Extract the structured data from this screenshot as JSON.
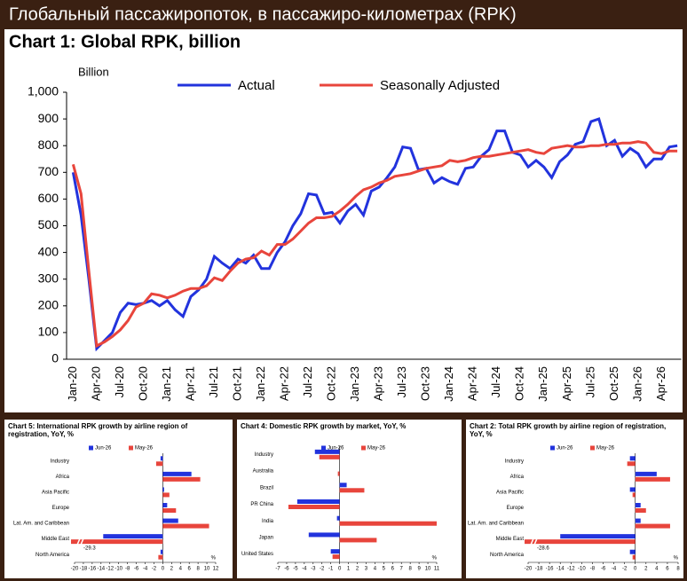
{
  "header": {
    "title": "Глобальный пассажиропоток, в пассажиро-километрах (RPK)"
  },
  "chart_data": [
    {
      "type": "line",
      "title": "Chart 1: Global RPK, billion",
      "y_label": "Billion",
      "categories": [
        "Jan-20",
        null,
        null,
        "Apr-20",
        null,
        null,
        "Jul-20",
        null,
        null,
        "Oct-20",
        null,
        null,
        "Jan-21",
        null,
        null,
        "Apr-21",
        null,
        null,
        "Jul-21",
        null,
        null,
        "Oct-21",
        null,
        null,
        "Jan-22",
        null,
        null,
        "Apr-22",
        null,
        null,
        "Jul-22",
        null,
        null,
        "Oct-22",
        null,
        null,
        "Jan-23",
        null,
        null,
        "Apr-23",
        null,
        null,
        "Jul-23",
        null,
        null,
        "Oct-23",
        null,
        null,
        "Jan-24",
        null,
        null,
        "Apr-24",
        null,
        null,
        "Jul-24",
        null,
        null,
        "Oct-24",
        null,
        null,
        "Jan-25",
        null,
        null,
        "Apr-25",
        null,
        null,
        "Jul-25",
        null,
        null,
        "Oct-25",
        null,
        null,
        "Jan-26",
        null,
        null,
        "Apr-26",
        null,
        null
      ],
      "series": [
        {
          "name": "Actual",
          "color": "#2233dd",
          "values": [
            700,
            540,
            300,
            40,
            70,
            100,
            175,
            210,
            205,
            210,
            220,
            200,
            220,
            185,
            160,
            235,
            260,
            300,
            385,
            360,
            340,
            375,
            360,
            390,
            340,
            340,
            400,
            440,
            500,
            545,
            620,
            615,
            545,
            550,
            510,
            555,
            580,
            540,
            630,
            645,
            680,
            720,
            795,
            790,
            710,
            715,
            660,
            680,
            665,
            655,
            715,
            720,
            760,
            785,
            855,
            855,
            775,
            765,
            720,
            745,
            720,
            680,
            740,
            765,
            805,
            815,
            890,
            900,
            800,
            820,
            760,
            790,
            770,
            720,
            750,
            750,
            795,
            800
          ]
        },
        {
          "name": "Seasonally Adjusted",
          "color": "#e8453c",
          "values": [
            730,
            620,
            330,
            50,
            65,
            85,
            110,
            145,
            195,
            210,
            245,
            240,
            230,
            240,
            255,
            265,
            265,
            275,
            305,
            295,
            330,
            360,
            375,
            380,
            405,
            390,
            430,
            430,
            450,
            480,
            510,
            530,
            530,
            535,
            555,
            580,
            610,
            635,
            645,
            660,
            670,
            685,
            690,
            695,
            705,
            715,
            720,
            725,
            745,
            740,
            745,
            755,
            760,
            760,
            765,
            770,
            775,
            780,
            785,
            775,
            770,
            790,
            795,
            800,
            795,
            795,
            800,
            800,
            805,
            805,
            810,
            810,
            815,
            810,
            775,
            770,
            780,
            780
          ]
        }
      ],
      "ylim": [
        0,
        1000
      ],
      "yticks": [
        0,
        100,
        200,
        300,
        400,
        500,
        600,
        700,
        800,
        900,
        {
          "value": 1000,
          "label": "1,000"
        }
      ],
      "legend": "top",
      "grid": false
    },
    {
      "type": "hbar",
      "title": "Chart 5: International RPK growth by airline region of registration, YoY, %",
      "categories": [
        "Industry",
        "Africa",
        "Asia Pacific",
        "Europe",
        "Lat. Am. and Caribbean",
        "Middle East",
        "North America"
      ],
      "series": [
        {
          "name": "Jun-26",
          "color": "#2233dd",
          "values": [
            -0.5,
            6.5,
            0.3,
            1.0,
            3.5,
            -13.5,
            -0.5
          ]
        },
        {
          "name": "May-26",
          "color": "#e8453c",
          "values": [
            -1.5,
            8.5,
            1.5,
            3.0,
            10.5,
            -29.3,
            -1.0
          ],
          "value_labels": [
            null,
            null,
            null,
            null,
            null,
            "-29.3",
            null
          ]
        }
      ],
      "xlim": [
        -20,
        12
      ],
      "xticks": [
        -20,
        -18,
        -16,
        -14,
        -12,
        -10,
        -8,
        -6,
        -4,
        -2,
        0,
        2,
        4,
        6,
        8,
        10,
        12
      ],
      "x_label": "%"
    },
    {
      "type": "hbar",
      "title": "Chart 4: Domestic RPK growth by market, YoY, %",
      "categories": [
        "Industry",
        "Australia",
        "Brazil",
        "PR China",
        "India",
        "Japan",
        "United States"
      ],
      "series": [
        {
          "name": "Jun-26",
          "color": "#2233dd",
          "values": [
            -2.8,
            0,
            0.8,
            -4.8,
            -0.3,
            -3.5,
            -1.0
          ]
        },
        {
          "name": "May-26",
          "color": "#e8453c",
          "values": [
            -2.3,
            -0.2,
            2.8,
            -5.8,
            11,
            4.2,
            -0.8
          ]
        }
      ],
      "xlim": [
        -7,
        11
      ],
      "xticks": [
        -7,
        -6,
        -5,
        -4,
        -3,
        -2,
        -1,
        0,
        1,
        2,
        3,
        4,
        5,
        6,
        7,
        8,
        9,
        10,
        11
      ],
      "x_label": "%"
    },
    {
      "type": "hbar",
      "title": "Chart 2: Total RPK growth by airline region of registration, YoY, %",
      "categories": [
        "Industry",
        "Africa",
        "Asia Pacific",
        "Europe",
        "Lat. Am. and Caribbean",
        "Middle East",
        "North America"
      ],
      "series": [
        {
          "name": "Jun-26",
          "color": "#2233dd",
          "values": [
            -1,
            4,
            -1,
            1,
            1,
            -14,
            -1
          ]
        },
        {
          "name": "May-26",
          "color": "#e8453c",
          "values": [
            -1.5,
            6.5,
            -0.5,
            2,
            6.5,
            -28.6,
            -0.5
          ],
          "value_labels": [
            null,
            null,
            null,
            null,
            null,
            "-28.6",
            null
          ]
        }
      ],
      "xlim": [
        -20,
        8
      ],
      "xticks": [
        -20,
        -18,
        -16,
        -14,
        -12,
        -10,
        -8,
        -6,
        -4,
        -2,
        0,
        2,
        4,
        6,
        8
      ],
      "x_label": "%"
    }
  ]
}
